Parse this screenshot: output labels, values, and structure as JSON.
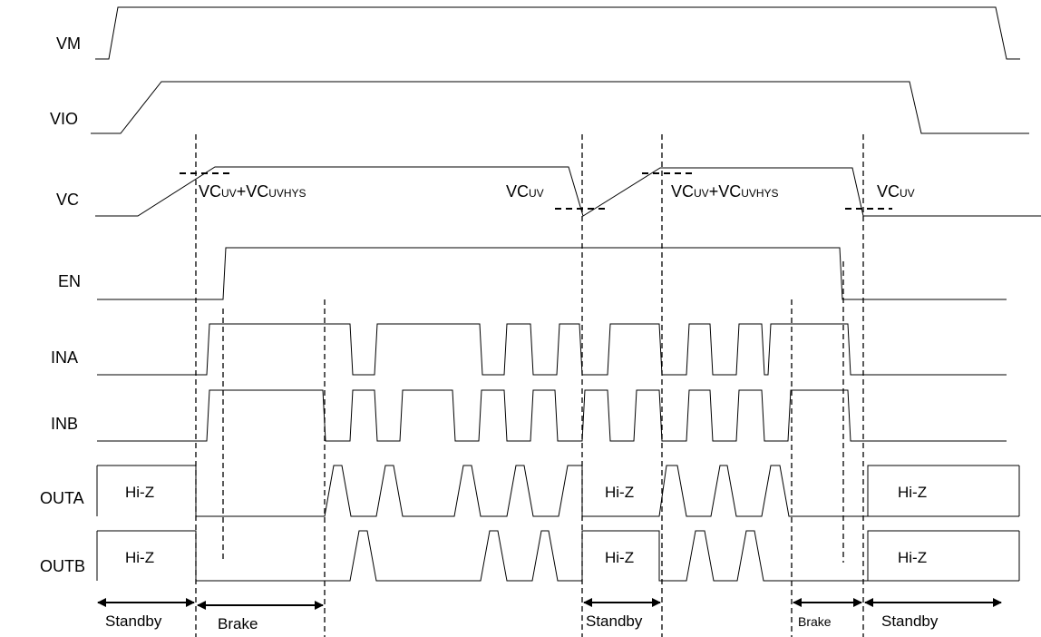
{
  "signals": {
    "vm": "VM",
    "vio": "VIO",
    "vc": "VC",
    "en": "EN",
    "ina": "INA",
    "inb": "INB",
    "outa": "OUTA",
    "outb": "OUTB"
  },
  "annotations": {
    "vc_uv_main": "VC",
    "vc_uv_sub": "UV",
    "plus": "+",
    "vc_uvhys_main": "VC",
    "vc_uvhys_sub": "UVHYS"
  },
  "states": {
    "hiz": "Hi-Z",
    "standby": "Standby",
    "brake": "Brake"
  },
  "colors": {
    "line": "#000000",
    "background": "#ffffff"
  }
}
